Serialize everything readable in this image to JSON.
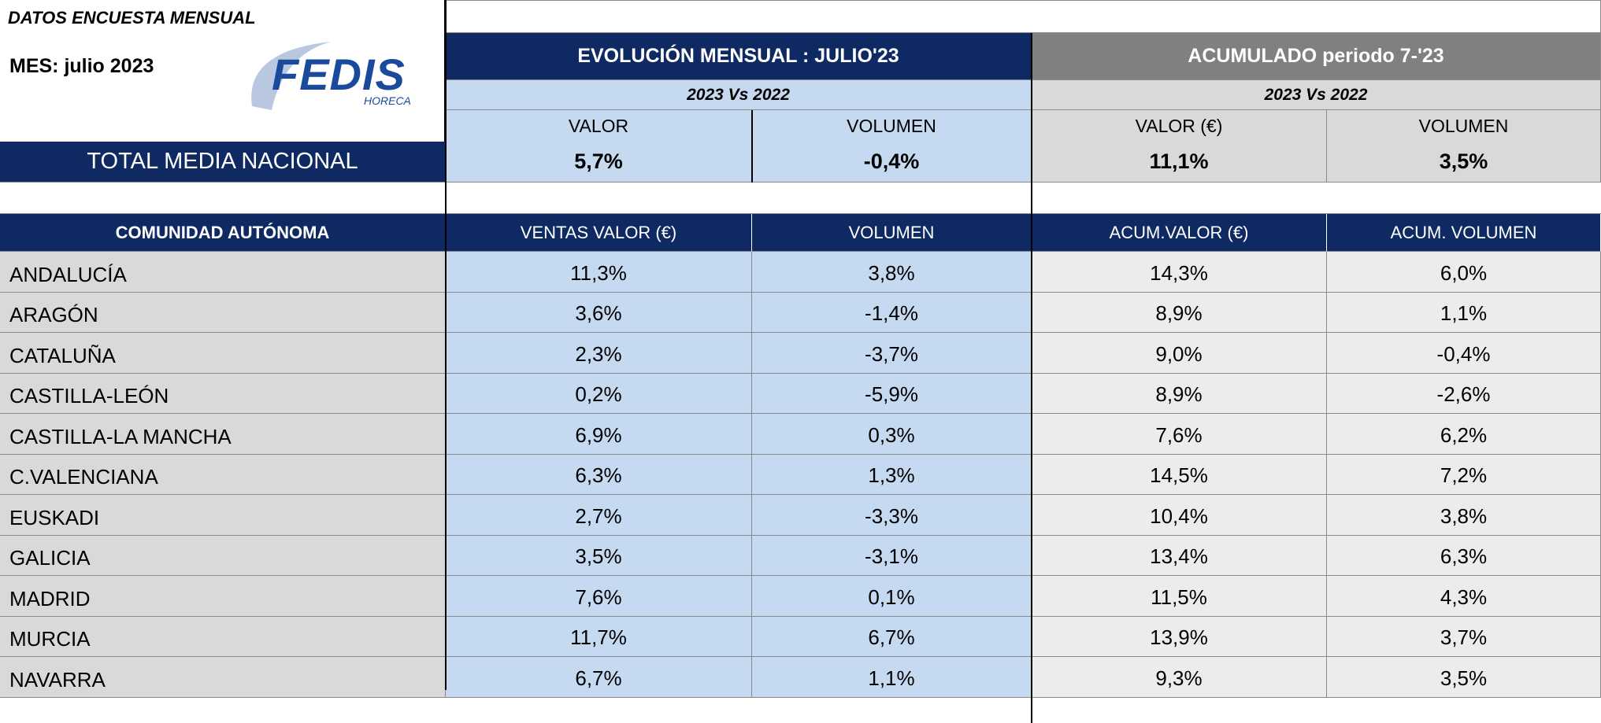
{
  "header": {
    "title": "DATOS ENCUESTA MENSUAL",
    "month": "MES: julio 2023",
    "logo": "FEDIS",
    "logo_sub": "HORECA"
  },
  "summary": {
    "monthly_title": "EVOLUCIÓN MENSUAL : JULIO'23",
    "cumulative_title": "ACUMULADO  periodo 7-'23",
    "monthly_compare": "2023 Vs 2022",
    "cumulative_compare": "2023 Vs 2022",
    "columns": [
      "VALOR",
      "VOLUMEN",
      "VALOR (€)",
      "VOLUMEN"
    ],
    "label": "TOTAL MEDIA NACIONAL",
    "values": [
      "5,7%",
      "-0,4%",
      "11,1%",
      "3,5%"
    ]
  },
  "table": {
    "columns": [
      "COMUNIDAD AUTÓNOMA",
      "VENTAS VALOR (€)",
      "VOLUMEN",
      "ACUM.VALOR (€)",
      "ACUM. VOLUMEN"
    ],
    "rows": [
      [
        "ANDALUCÍA",
        "11,3%",
        "3,8%",
        "14,3%",
        "6,0%"
      ],
      [
        "ARAGÓN",
        "3,6%",
        "-1,4%",
        "8,9%",
        "1,1%"
      ],
      [
        "CATALUÑA",
        "2,3%",
        "-3,7%",
        "9,0%",
        "-0,4%"
      ],
      [
        "CASTILLA-LEÓN",
        "0,2%",
        "-5,9%",
        "8,9%",
        "-2,6%"
      ],
      [
        "CASTILLA-LA MANCHA",
        "6,9%",
        "0,3%",
        "7,6%",
        "6,2%"
      ],
      [
        "C.VALENCIANA",
        "6,3%",
        "1,3%",
        "14,5%",
        "7,2%"
      ],
      [
        "EUSKADI",
        "2,7%",
        "-3,3%",
        "10,4%",
        "3,8%"
      ],
      [
        "GALICIA",
        "3,5%",
        "-3,1%",
        "13,4%",
        "6,3%"
      ],
      [
        "MADRID",
        "7,6%",
        "0,1%",
        "11,5%",
        "4,3%"
      ],
      [
        "MURCIA",
        "11,7%",
        "6,7%",
        "13,9%",
        "3,7%"
      ],
      [
        "NAVARRA",
        "6,7%",
        "1,1%",
        "9,3%",
        "3,5%"
      ]
    ]
  }
}
